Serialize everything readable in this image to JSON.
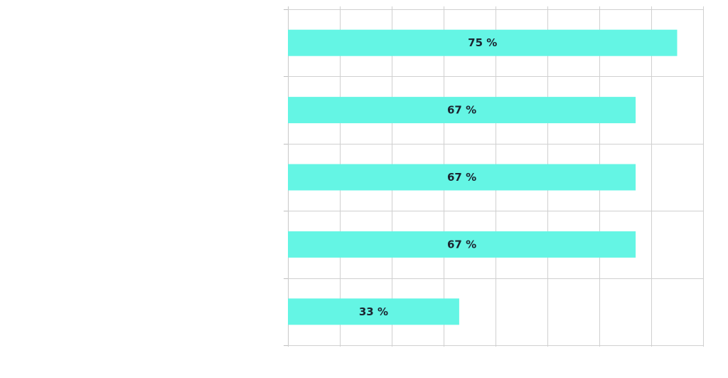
{
  "chart_data": {
    "type": "bar",
    "orientation": "horizontal",
    "title": "",
    "xlabel": "",
    "ylabel": "",
    "xlim": [
      0,
      80
    ],
    "x_gridline_step": 10,
    "grid": true,
    "bar_color": "#64f5e4",
    "series": [
      {
        "values": [
          75,
          67,
          67,
          67,
          33
        ],
        "data_labels": [
          "75 %",
          "67 %",
          "67 %",
          "67 %",
          "33 %"
        ]
      }
    ]
  }
}
